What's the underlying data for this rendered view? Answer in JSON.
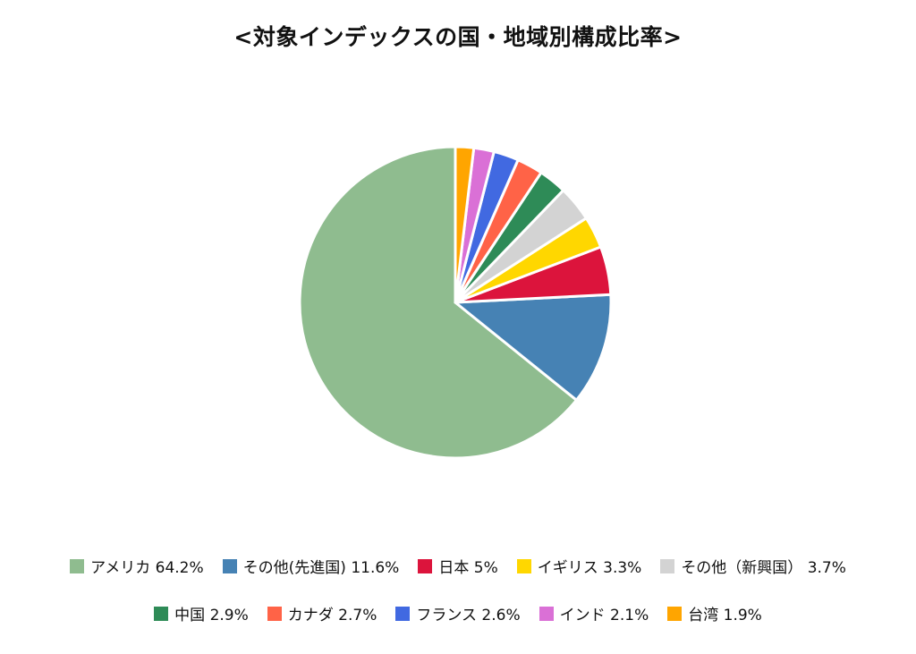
{
  "chart_data": {
    "type": "pie",
    "title": "<対象インデックスの国・地域別構成比率>",
    "legend_position": "bottom",
    "slices": [
      {
        "label": "アメリカ 64.2%",
        "name": "アメリカ",
        "value": 64.2,
        "color": "#8fbc8f"
      },
      {
        "label": "その他(先進国) 11.6%",
        "name": "その他(先進国)",
        "value": 11.6,
        "color": "#4682b4"
      },
      {
        "label": "日本 5%",
        "name": "日本",
        "value": 5,
        "color": "#dc143c"
      },
      {
        "label": "イギリス 3.3%",
        "name": "イギリス",
        "value": 3.3,
        "color": "#ffd700"
      },
      {
        "label": "その他（新興国） 3.7%",
        "name": "その他（新興国）",
        "value": 3.7,
        "color": "#d3d3d3"
      },
      {
        "label": "中国 2.9%",
        "name": "中国",
        "value": 2.9,
        "color": "#2e8b57"
      },
      {
        "label": "カナダ 2.7%",
        "name": "カナダ",
        "value": 2.7,
        "color": "#ff6347"
      },
      {
        "label": "フランス 2.6%",
        "name": "フランス",
        "value": 2.6,
        "color": "#4169e1"
      },
      {
        "label": "インド 2.1%",
        "name": "インド",
        "value": 2.1,
        "color": "#da70d6"
      },
      {
        "label": "台湾 1.9%",
        "name": "台湾",
        "value": 1.9,
        "color": "#ffa500"
      }
    ]
  }
}
